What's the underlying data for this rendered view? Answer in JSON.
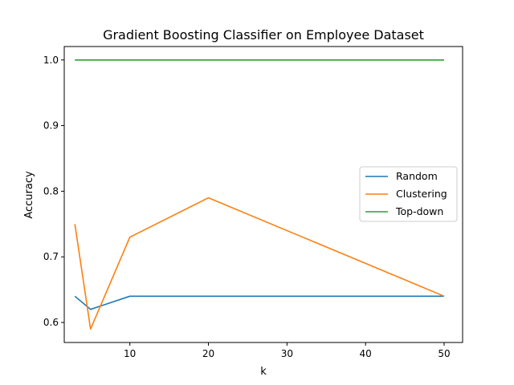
{
  "chart_data": {
    "type": "line",
    "title": "Gradient Boosting Classifier on Employee Dataset",
    "xlabel": "k",
    "ylabel": "Accuracy",
    "xlim": [
      1.65,
      52.35
    ],
    "ylim": [
      0.5695,
      1.0205
    ],
    "xticks": [
      10,
      20,
      30,
      40,
      50
    ],
    "xtick_labels": [
      "10",
      "20",
      "30",
      "40",
      "50"
    ],
    "yticks": [
      0.6,
      0.7,
      0.8,
      0.9,
      1.0
    ],
    "ytick_labels": [
      "0.6",
      "0.7",
      "0.8",
      "0.9",
      "1.0"
    ],
    "grid": false,
    "legend_position": "center-right",
    "x": [
      3,
      5,
      10,
      20,
      50
    ],
    "series": [
      {
        "name": "Random",
        "color": "#1f77b4",
        "values": [
          0.64,
          0.62,
          0.64,
          0.64,
          0.64
        ]
      },
      {
        "name": "Clustering",
        "color": "#ff7f0e",
        "values": [
          0.75,
          0.59,
          0.73,
          0.79,
          0.64
        ]
      },
      {
        "name": "Top-down",
        "color": "#2ca02c",
        "values": [
          1.0,
          1.0,
          1.0,
          1.0,
          1.0
        ]
      }
    ]
  }
}
